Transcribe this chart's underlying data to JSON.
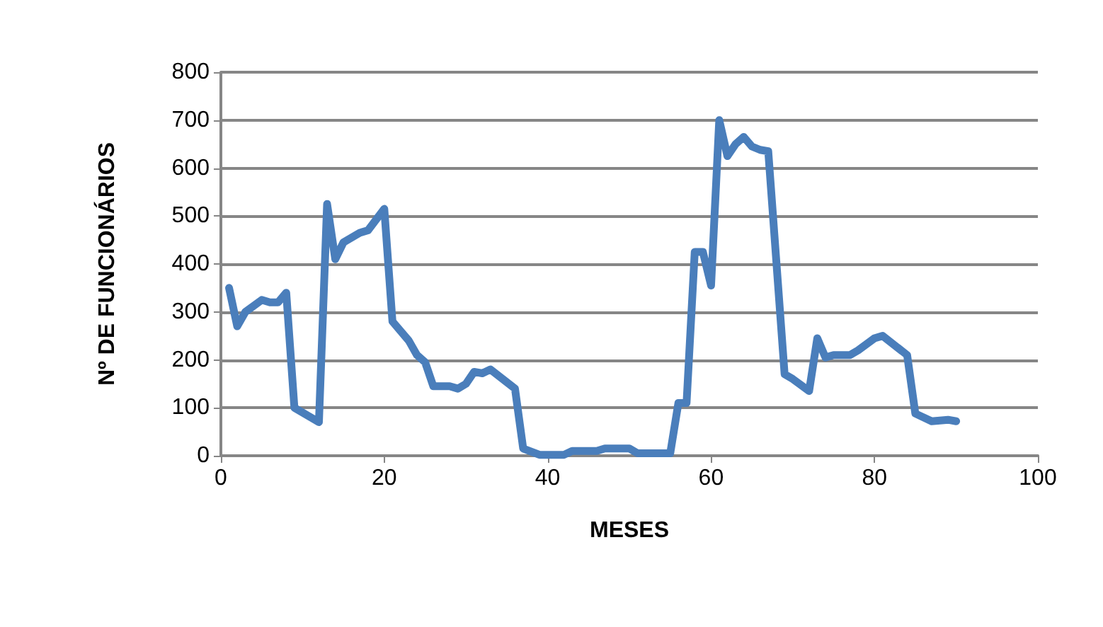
{
  "chart_data": {
    "type": "line",
    "xlabel": "MESES",
    "ylabel": "Nº DE FUNCIONÁRIOS",
    "x": [
      1,
      2,
      3,
      5,
      6,
      7,
      8,
      9,
      12,
      13,
      14,
      15,
      17,
      18,
      20,
      21,
      23,
      24,
      25,
      26,
      28,
      29,
      30,
      31,
      32,
      33,
      36,
      37,
      39,
      40,
      42,
      43,
      46,
      47,
      50,
      51,
      55,
      56,
      57,
      58,
      59,
      60,
      61,
      62,
      63,
      64,
      65,
      66,
      67,
      69,
      70,
      72,
      73,
      74,
      75,
      77,
      78,
      80,
      81,
      84,
      85,
      87,
      89,
      90
    ],
    "series": [
      {
        "color": "#4a7ebb",
        "values": [
          350,
          270,
          300,
          325,
          320,
          320,
          340,
          100,
          70,
          525,
          410,
          445,
          465,
          470,
          515,
          280,
          240,
          210,
          195,
          145,
          145,
          140,
          150,
          175,
          172,
          180,
          140,
          15,
          2,
          2,
          2,
          10,
          10,
          15,
          15,
          5,
          5,
          110,
          110,
          425,
          425,
          355,
          700,
          625,
          650,
          665,
          645,
          638,
          635,
          170,
          160,
          135,
          245,
          205,
          210,
          210,
          220,
          245,
          250,
          210,
          88,
          72,
          75,
          72
        ]
      }
    ],
    "xlim": [
      0,
      100
    ],
    "xticks": [
      0,
      20,
      40,
      60,
      80,
      100
    ],
    "ylim": [
      0,
      800
    ],
    "yticks": [
      0,
      100,
      200,
      300,
      400,
      500,
      600,
      700,
      800
    ],
    "grid": "y",
    "marker": "none",
    "line_style": "solid"
  }
}
